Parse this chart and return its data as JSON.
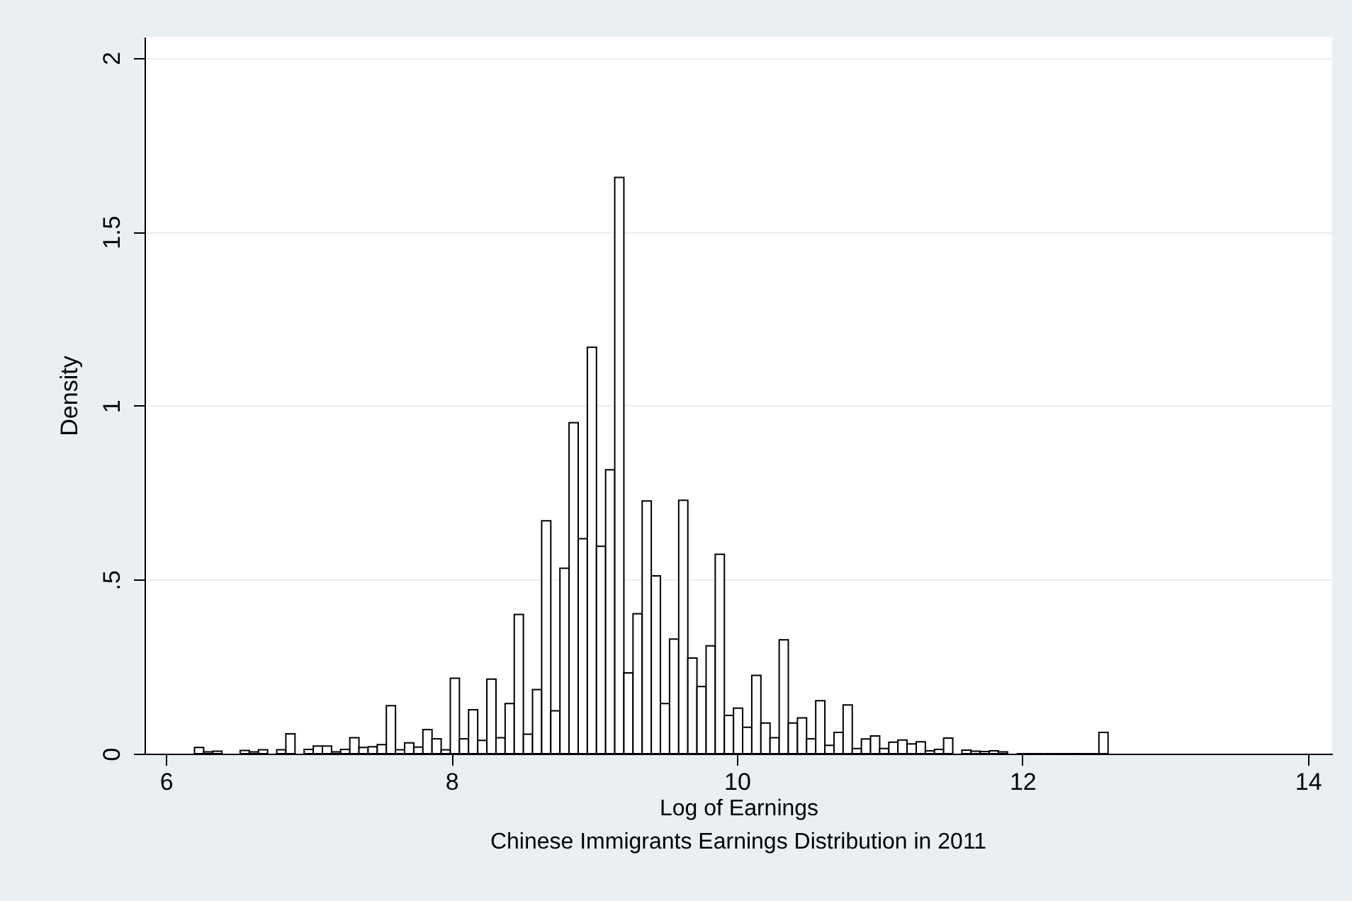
{
  "chart_data": {
    "type": "histogram",
    "title": "Chinese Immigrants Earnings Distribution in 2011",
    "xlabel": "Log of Earnings",
    "ylabel": "Density",
    "bins": [
      6.2,
      6.264,
      6.328,
      6.392,
      6.456,
      6.52,
      6.584,
      6.648,
      6.712,
      6.776,
      6.84,
      6.904,
      6.968,
      7.032,
      7.096,
      7.16,
      7.224,
      7.288,
      7.352,
      7.416,
      7.48,
      7.544,
      7.608,
      7.672,
      7.736,
      7.8,
      7.864,
      7.928,
      7.992,
      8.056,
      8.12,
      8.184,
      8.248,
      8.312,
      8.376,
      8.44,
      8.504,
      8.568,
      8.632,
      8.696,
      8.76,
      8.824,
      8.888,
      8.952,
      9.016,
      9.08,
      9.144,
      9.208,
      9.272,
      9.336,
      9.4,
      9.464,
      9.528,
      9.592,
      9.656,
      9.72,
      9.784,
      9.848,
      9.912,
      9.976,
      10.04,
      10.104,
      10.168,
      10.232,
      10.296,
      10.36,
      10.424,
      10.488,
      10.552,
      10.616,
      10.68,
      10.744,
      10.808,
      10.872,
      10.936,
      11,
      11.064,
      11.128,
      11.192,
      11.256,
      11.32,
      11.384,
      11.448,
      11.512,
      11.576,
      11.64,
      11.704,
      11.768,
      11.832,
      11.896,
      11.96,
      12.024,
      12.088,
      12.152,
      12.216,
      12.28,
      12.344,
      12.408,
      12.472,
      12.536,
      12.6
    ],
    "values": [
      0.018,
      0.005,
      0.007,
      null,
      null,
      0.009,
      0.005,
      0.011,
      null,
      0.011,
      0.057,
      null,
      0.012,
      0.022,
      0.022,
      0.005,
      0.012,
      0.046,
      0.018,
      0.02,
      0.026,
      0.138,
      0.011,
      0.031,
      0.019,
      0.069,
      0.043,
      0.011,
      0.217,
      0.043,
      0.126,
      0.038,
      0.214,
      0.046,
      0.144,
      0.4,
      0.056,
      0.184,
      0.669,
      0.123,
      0.533,
      0.951,
      0.618,
      1.168,
      0.596,
      0.816,
      1.656,
      0.232,
      0.402,
      0.726,
      0.511,
      0.144,
      0.329,
      0.728,
      0.275,
      0.193,
      0.31,
      0.573,
      0.11,
      0.131,
      0.076,
      0.225,
      0.088,
      0.046,
      0.327,
      0.088,
      0.103,
      0.043,
      0.152,
      0.024,
      0.061,
      0.14,
      0.015,
      0.042,
      0.051,
      0.015,
      0.033,
      0.039,
      0.028,
      0.034,
      0.008,
      0.012,
      0.045,
      null,
      0.01,
      0.007,
      0.006,
      0.008,
      0.005,
      null,
      0,
      0,
      0,
      0,
      0,
      0,
      0,
      0,
      0,
      0.061
    ],
    "xlim": [
      5.85,
      14.17
    ],
    "ylim": [
      0,
      2.06
    ],
    "xticks": [
      6,
      8,
      10,
      12,
      14
    ],
    "yticks": [
      0,
      {
        "value": 0.5,
        "label": ".5"
      },
      1,
      1.5,
      2
    ],
    "grid": "y"
  }
}
